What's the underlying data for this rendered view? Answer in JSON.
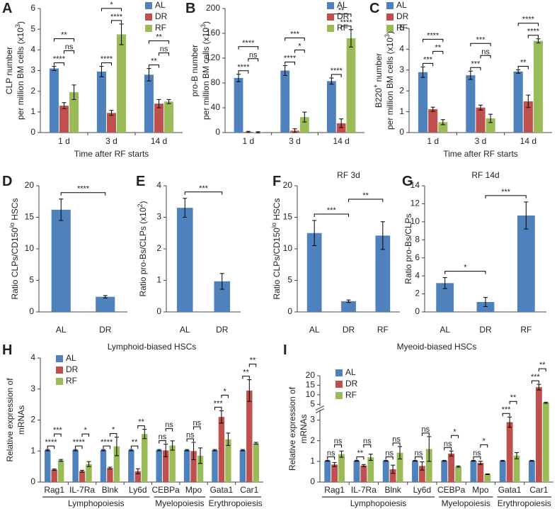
{
  "chart_data": [
    {
      "type": "bar",
      "panel": "A",
      "ylabel": [
        [
          "CLP number"
        ],
        [
          "per million BM cells (x10",
          "3",
          ")"
        ]
      ],
      "xlabel": "Time after RF starts",
      "categories": [
        "1 d",
        "3 d",
        "14 d"
      ],
      "series": [
        {
          "name": "AL",
          "color": "#4f81bd",
          "values": [
            3.1,
            2.95,
            2.8
          ],
          "errors": [
            0.1,
            0.25,
            0.3
          ]
        },
        {
          "name": "DR",
          "color": "#c0504d",
          "values": [
            1.3,
            0.95,
            1.4
          ],
          "errors": [
            0.15,
            0.12,
            0.2
          ]
        },
        {
          "name": "RF",
          "color": "#9bbb59",
          "values": [
            1.95,
            4.75,
            1.5
          ],
          "errors": [
            0.35,
            0.5,
            0.1
          ]
        }
      ],
      "ylim": [
        0,
        6
      ],
      "yticks": [
        0,
        1,
        2,
        3,
        4,
        5,
        6
      ],
      "legend": "top-right",
      "annotations": [
        {
          "text": "****",
          "category": "1 d",
          "pair": [
            "AL",
            "DR"
          ]
        },
        {
          "text": "ns",
          "category": "1 d",
          "pair": [
            "DR",
            "RF"
          ]
        },
        {
          "text": "**",
          "category": "1 d",
          "pair": [
            "AL",
            "RF"
          ]
        },
        {
          "text": "****",
          "category": "3 d",
          "pair": [
            "AL",
            "DR"
          ]
        },
        {
          "text": "****",
          "category": "3 d",
          "pair": [
            "DR",
            "RF"
          ]
        },
        {
          "text": "*",
          "category": "3 d",
          "pair": [
            "AL",
            "RF"
          ]
        },
        {
          "text": "**",
          "category": "14 d",
          "pair": [
            "AL",
            "DR"
          ]
        },
        {
          "text": "ns",
          "category": "14 d",
          "pair": [
            "DR",
            "RF"
          ]
        },
        {
          "text": "**",
          "category": "14 d",
          "pair": [
            "AL",
            "RF"
          ]
        }
      ]
    },
    {
      "type": "bar",
      "panel": "B",
      "ylabel": [
        [
          "pro-B number"
        ],
        [
          "per million BM cells (x10",
          "3",
          ")"
        ]
      ],
      "categories": [
        "1 d",
        "3 d",
        "14 d"
      ],
      "series": [
        {
          "name": "AL",
          "color": "#4f81bd",
          "values": [
            88,
            100,
            83
          ],
          "errors": [
            6,
            8,
            5
          ]
        },
        {
          "name": "DR",
          "color": "#c0504d",
          "values": [
            1,
            3,
            15
          ],
          "errors": [
            1,
            3,
            7
          ]
        },
        {
          "name": "RF",
          "color": "#9bbb59",
          "values": [
            0.5,
            25,
            152
          ],
          "errors": [
            1,
            8,
            14
          ]
        }
      ],
      "ylim": [
        0,
        200
      ],
      "yticks": [
        0,
        40,
        80,
        120,
        160,
        200
      ],
      "legend": "top-right",
      "annotations": [
        {
          "text": "****",
          "category": "1 d",
          "pair": [
            "AL",
            "DR"
          ]
        },
        {
          "text": "ns",
          "category": "1 d",
          "pair": [
            "DR",
            "RF"
          ]
        },
        {
          "text": "****",
          "category": "1 d",
          "pair": [
            "AL",
            "RF"
          ]
        },
        {
          "text": "****",
          "category": "3 d",
          "pair": [
            "AL",
            "DR"
          ]
        },
        {
          "text": "*",
          "category": "3 d",
          "pair": [
            "DR",
            "RF"
          ]
        },
        {
          "text": "***",
          "category": "3 d",
          "pair": [
            "AL",
            "RF"
          ]
        },
        {
          "text": "****",
          "category": "14 d",
          "pair": [
            "AL",
            "DR"
          ]
        },
        {
          "text": "****",
          "category": "14 d",
          "pair": [
            "DR",
            "RF"
          ]
        },
        {
          "text": "**",
          "category": "14 d",
          "pair": [
            "AL",
            "RF"
          ]
        }
      ]
    },
    {
      "type": "bar",
      "panel": "C",
      "ylabel": [
        [
          "B220",
          "+",
          " number"
        ],
        [
          "per million BM cells (x10",
          "3",
          ")"
        ]
      ],
      "xlabel": "Time after RF starts",
      "categories": [
        "1 d",
        "3 d",
        "14 d"
      ],
      "series": [
        {
          "name": "AL",
          "color": "#4f81bd",
          "values": [
            2.9,
            2.75,
            2.93
          ],
          "errors": [
            0.25,
            0.2,
            0.08
          ]
        },
        {
          "name": "DR",
          "color": "#c0504d",
          "values": [
            1.12,
            1.2,
            1.5
          ],
          "errors": [
            0.1,
            0.12,
            0.3
          ]
        },
        {
          "name": "RF",
          "color": "#9bbb59",
          "values": [
            0.5,
            0.68,
            4.4
          ],
          "errors": [
            0.12,
            0.2,
            0.1
          ]
        }
      ],
      "ylim": [
        0,
        5
      ],
      "yticks": [
        0,
        1,
        2,
        3,
        4,
        5
      ],
      "legend": "top-left",
      "annotations": [
        {
          "text": "***",
          "category": "1 d",
          "pair": [
            "AL",
            "DR"
          ]
        },
        {
          "text": "**",
          "category": "1 d",
          "pair": [
            "DR",
            "RF"
          ]
        },
        {
          "text": "****",
          "category": "1 d",
          "pair": [
            "AL",
            "RF"
          ]
        },
        {
          "text": "***",
          "category": "3 d",
          "pair": [
            "AL",
            "DR"
          ]
        },
        {
          "text": "ns",
          "category": "3 d",
          "pair": [
            "DR",
            "RF"
          ]
        },
        {
          "text": "***",
          "category": "3 d",
          "pair": [
            "AL",
            "RF"
          ]
        },
        {
          "text": "**",
          "category": "14 d",
          "pair": [
            "AL",
            "DR"
          ]
        },
        {
          "text": "****",
          "category": "14 d",
          "pair": [
            "DR",
            "RF"
          ]
        },
        {
          "text": "****",
          "category": "14 d",
          "pair": [
            "AL",
            "RF"
          ]
        }
      ]
    },
    {
      "type": "bar",
      "panel": "D",
      "ylabel": [
        [
          "Ratio CLPs/CD150",
          "lo",
          " HSCs"
        ]
      ],
      "categories": [
        "AL",
        "DR"
      ],
      "color": "#4f81bd",
      "values": [
        16.2,
        2.4
      ],
      "errors": [
        1.7,
        0.2
      ],
      "ylim": [
        0,
        20
      ],
      "yticks": [
        0,
        5,
        10,
        15,
        20
      ],
      "annotations": [
        {
          "text": "****",
          "pair": [
            "AL",
            "DR"
          ]
        }
      ]
    },
    {
      "type": "bar",
      "panel": "E",
      "ylabel": [
        [
          "Ratio pro-Bs/CLPs (x10",
          "2",
          ")"
        ]
      ],
      "categories": [
        "AL",
        "DR"
      ],
      "color": "#4f81bd",
      "values": [
        3.3,
        0.97
      ],
      "errors": [
        0.3,
        0.25
      ],
      "ylim": [
        0,
        4
      ],
      "yticks": [
        0,
        1,
        2,
        3,
        4
      ],
      "annotations": [
        {
          "text": "***",
          "pair": [
            "AL",
            "DR"
          ]
        }
      ]
    },
    {
      "type": "bar",
      "panel": "F",
      "title": "RF 3d",
      "ylabel": [
        [
          "Ratio CLPs/CD150",
          "lo",
          " HSCs"
        ]
      ],
      "categories": [
        "AL",
        "DR",
        "RF"
      ],
      "color": "#4f81bd",
      "values": [
        12.5,
        1.7,
        12.1
      ],
      "errors": [
        2,
        0.2,
        2.2
      ],
      "ylim": [
        0,
        20
      ],
      "yticks": [
        0,
        5,
        10,
        15,
        20
      ],
      "annotations": [
        {
          "text": "***",
          "pair": [
            "AL",
            "DR"
          ]
        },
        {
          "text": "**",
          "pair": [
            "DR",
            "RF"
          ]
        }
      ]
    },
    {
      "type": "bar",
      "panel": "G",
      "title": "RF 14d",
      "ylabel": [
        [
          "Ratio pro-Bs/CLPs"
        ]
      ],
      "categories": [
        "AL",
        "DR",
        "RF"
      ],
      "color": "#4f81bd",
      "values": [
        3.2,
        1.1,
        10.7
      ],
      "errors": [
        0.6,
        0.5,
        1.5
      ],
      "ylim": [
        0,
        14
      ],
      "yticks": [
        0,
        2,
        4,
        6,
        8,
        10,
        12,
        14
      ],
      "annotations": [
        {
          "text": "*",
          "pair": [
            "AL",
            "DR"
          ]
        },
        {
          "text": "***",
          "pair": [
            "DR",
            "RF"
          ]
        }
      ]
    },
    {
      "type": "bar",
      "panel": "H",
      "title": "Lymphoid-biased HSCs",
      "ylabel": [
        [
          "Relative expression of"
        ],
        [
          "mRNAs"
        ]
      ],
      "categories": [
        "Rag1",
        "IL-7Ra",
        "Blnk",
        "Ly6d",
        "CEBPa",
        "Mpo",
        "Gata1",
        "Car1"
      ],
      "groups": [
        {
          "label": "Lymphopoiesis",
          "from": "Rag1",
          "to": "Ly6d"
        },
        {
          "label": "Myelopoiesis",
          "from": "CEBPa",
          "to": "Mpo"
        },
        {
          "label": "Erythropoiesis",
          "from": "Gata1",
          "to": "Car1"
        }
      ],
      "series": [
        {
          "name": "AL",
          "color": "#4f81bd",
          "values": [
            1.03,
            1.03,
            1.03,
            1.03,
            1.03,
            1.03,
            1.03,
            1.03
          ],
          "errors": [
            0.02,
            0.02,
            0.02,
            0.02,
            0.02,
            0.02,
            0.02,
            0.02
          ]
        },
        {
          "name": "DR",
          "color": "#c0504d",
          "values": [
            0.4,
            0.35,
            0.45,
            0.35,
            1.02,
            1.0,
            2.1,
            2.95
          ],
          "errors": [
            0.02,
            0.03,
            0.03,
            0.08,
            0.2,
            0.28,
            0.2,
            0.35
          ]
        },
        {
          "name": "RF",
          "color": "#9bbb59",
          "values": [
            0.7,
            0.58,
            1.15,
            1.55,
            1.18,
            0.85,
            1.38,
            1.25
          ],
          "errors": [
            0.03,
            0.08,
            0.3,
            0.15,
            0.15,
            0.25,
            0.2,
            0.03
          ]
        }
      ],
      "ylim": [
        0,
        4
      ],
      "yticks": [
        0,
        1,
        2,
        3,
        4
      ],
      "legend": "top-left",
      "annotations": [
        {
          "text": "****",
          "category": "Rag1",
          "pair": [
            "AL",
            "DR"
          ]
        },
        {
          "text": "***",
          "category": "Rag1",
          "pair": [
            "DR",
            "RF"
          ]
        },
        {
          "text": "****",
          "category": "IL-7Ra",
          "pair": [
            "AL",
            "DR"
          ]
        },
        {
          "text": "*",
          "category": "IL-7Ra",
          "pair": [
            "DR",
            "RF"
          ]
        },
        {
          "text": "****",
          "category": "Blnk",
          "pair": [
            "AL",
            "DR"
          ]
        },
        {
          "text": "*",
          "category": "Blnk",
          "pair": [
            "DR",
            "RF"
          ]
        },
        {
          "text": "**",
          "category": "Ly6d",
          "pair": [
            "AL",
            "DR"
          ]
        },
        {
          "text": "**",
          "category": "Ly6d",
          "pair": [
            "DR",
            "RF"
          ]
        },
        {
          "text": "ns",
          "category": "CEBPa",
          "pair": [
            "AL",
            "DR"
          ]
        },
        {
          "text": "ns",
          "category": "CEBPa",
          "pair": [
            "DR",
            "RF"
          ]
        },
        {
          "text": "ns",
          "category": "Mpo",
          "pair": [
            "AL",
            "DR"
          ]
        },
        {
          "text": "ns",
          "category": "Mpo",
          "pair": [
            "DR",
            "RF"
          ]
        },
        {
          "text": "***",
          "category": "Gata1",
          "pair": [
            "AL",
            "DR"
          ]
        },
        {
          "text": "*",
          "category": "Gata1",
          "pair": [
            "DR",
            "RF"
          ]
        },
        {
          "text": "**",
          "category": "Car1",
          "pair": [
            "AL",
            "DR"
          ]
        },
        {
          "text": "**",
          "category": "Car1",
          "pair": [
            "DR",
            "RF"
          ]
        }
      ]
    },
    {
      "type": "bar",
      "panel": "I",
      "title": "Myeoid-biased HSCs",
      "ylabel": [
        [
          "Relative expression of"
        ],
        [
          "mRNAs"
        ]
      ],
      "categories": [
        "Rag1",
        "IL-7Ra",
        "Blnk",
        "Ly6d",
        "CEBPa",
        "Mpo",
        "Gata1",
        "Car1"
      ],
      "groups": [
        {
          "label": "Lymphopoiesis",
          "from": "Rag1",
          "to": "Ly6d"
        },
        {
          "label": "Myelopoiesis",
          "from": "CEBPa",
          "to": "Mpo"
        },
        {
          "label": "Erythropoiesis",
          "from": "Gata1",
          "to": "Car1"
        }
      ],
      "series": [
        {
          "name": "AL",
          "color": "#4f81bd",
          "values": [
            1.03,
            1.03,
            1.03,
            1.03,
            1.03,
            1.03,
            1.03,
            1.03
          ],
          "errors": [
            0.02,
            0.02,
            0.02,
            0.02,
            0.02,
            0.02,
            0.02,
            0.02
          ]
        },
        {
          "name": "DR",
          "color": "#c0504d",
          "values": [
            0.85,
            0.8,
            0.62,
            0.78,
            1.38,
            0.93,
            2.9,
            14
          ],
          "errors": [
            0.1,
            0.05,
            0.2,
            0.2,
            0.12,
            0.08,
            0.25,
            1.5
          ]
        },
        {
          "name": "RF",
          "color": "#9bbb59",
          "values": [
            1.35,
            1.2,
            1.42,
            1.6,
            0.75,
            0.38,
            1.28,
            5.8
          ],
          "errors": [
            0.15,
            0.15,
            0.3,
            0.6,
            0.03,
            0.02,
            0.15,
            0.3
          ]
        }
      ],
      "ylim": [
        0,
        20
      ],
      "ybreak": [
        3.5,
        4
      ],
      "yticks": [
        0,
        1,
        2,
        3,
        5,
        10,
        15,
        20
      ],
      "legend": "top-left",
      "annotations": [
        {
          "text": "ns",
          "category": "Rag1",
          "pair": [
            "AL",
            "DR"
          ]
        },
        {
          "text": "ns",
          "category": "Rag1",
          "pair": [
            "DR",
            "RF"
          ]
        },
        {
          "text": "**",
          "category": "IL-7Ra",
          "pair": [
            "AL",
            "DR"
          ]
        },
        {
          "text": "ns",
          "category": "IL-7Ra",
          "pair": [
            "DR",
            "RF"
          ]
        },
        {
          "text": "ns",
          "category": "Blnk",
          "pair": [
            "AL",
            "DR"
          ]
        },
        {
          "text": "ns",
          "category": "Blnk",
          "pair": [
            "DR",
            "RF"
          ]
        },
        {
          "text": "ns",
          "category": "Ly6d",
          "pair": [
            "AL",
            "DR"
          ]
        },
        {
          "text": "ns",
          "category": "Ly6d",
          "pair": [
            "DR",
            "RF"
          ]
        },
        {
          "text": "ns",
          "category": "CEBPa",
          "pair": [
            "AL",
            "DR"
          ]
        },
        {
          "text": "*",
          "category": "CEBPa",
          "pair": [
            "DR",
            "RF"
          ]
        },
        {
          "text": "ns",
          "category": "Mpo",
          "pair": [
            "AL",
            "DR"
          ]
        },
        {
          "text": "*",
          "category": "Mpo",
          "pair": [
            "DR",
            "RF"
          ]
        },
        {
          "text": "***",
          "category": "Gata1",
          "pair": [
            "AL",
            "DR"
          ]
        },
        {
          "text": "**",
          "category": "Gata1",
          "pair": [
            "DR",
            "RF"
          ]
        },
        {
          "text": "***",
          "category": "Car1",
          "pair": [
            "AL",
            "DR"
          ]
        },
        {
          "text": "**",
          "category": "Car1",
          "pair": [
            "DR",
            "RF"
          ]
        }
      ]
    }
  ]
}
